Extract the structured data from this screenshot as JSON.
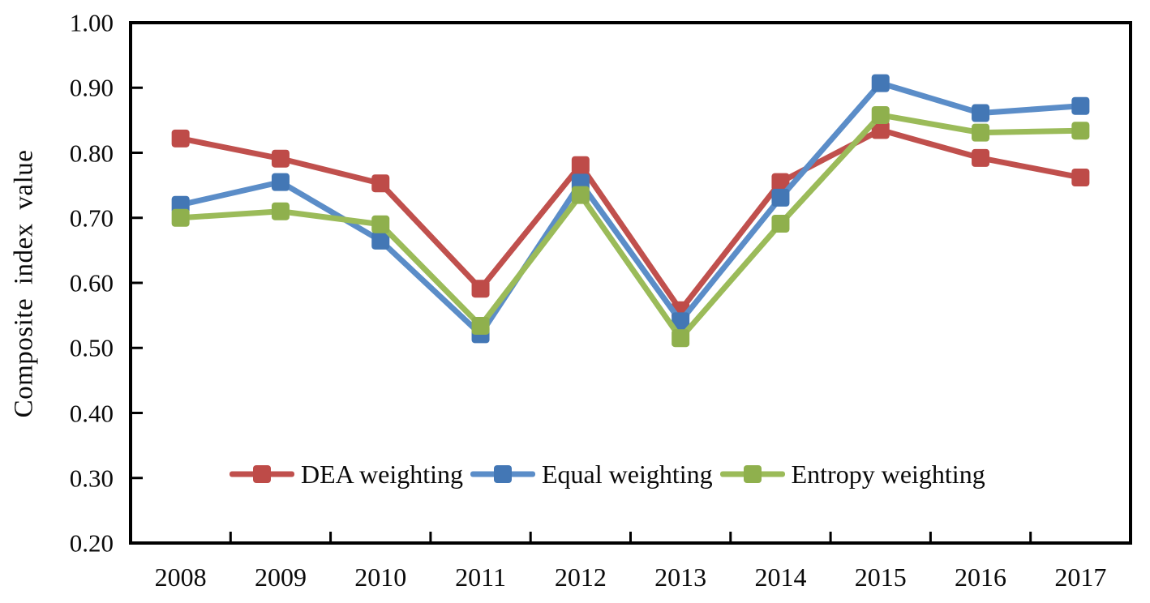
{
  "chart_data": {
    "type": "line",
    "title": "",
    "xlabel": "",
    "ylabel": "Composite index value",
    "categories": [
      "2008",
      "2009",
      "2010",
      "2011",
      "2012",
      "2013",
      "2014",
      "2015",
      "2016",
      "2017"
    ],
    "series": [
      {
        "name": "DEA weighting",
        "line_color": "#C0504D",
        "marker_color": "#BE4B48",
        "marker": "square",
        "values": [
          0.822,
          0.791,
          0.753,
          0.591,
          0.781,
          0.558,
          0.755,
          0.835,
          0.792,
          0.762
        ]
      },
      {
        "name": "Equal weighting",
        "line_color": "#5B8DC8",
        "marker_color": "#4377B5",
        "marker": "square",
        "values": [
          0.72,
          0.755,
          0.665,
          0.521,
          0.754,
          0.541,
          0.731,
          0.907,
          0.861,
          0.872
        ]
      },
      {
        "name": "Entropy weighting",
        "line_color": "#9BBB59",
        "marker_color": "#8FB04D",
        "marker": "square",
        "values": [
          0.7,
          0.71,
          0.69,
          0.534,
          0.735,
          0.515,
          0.691,
          0.858,
          0.831,
          0.834
        ]
      }
    ],
    "ylim": [
      0.2,
      1.0
    ],
    "yticks": [
      "0.20",
      "0.30",
      "0.40",
      "0.50",
      "0.60",
      "0.70",
      "0.80",
      "0.90",
      "1.00"
    ],
    "grid": false,
    "legend_position": "inside-bottom-center",
    "axis_color": "#000000",
    "text_color": "#0a0a0a",
    "background_color": "#ffffff"
  }
}
